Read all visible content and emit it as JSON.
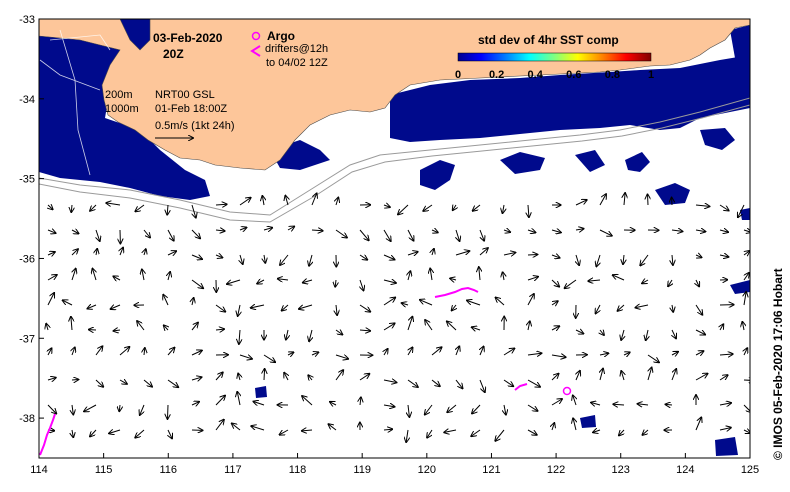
{
  "map": {
    "date": "03-Feb-2020",
    "time": "20Z",
    "argo_label": "Argo",
    "drifters_label": "drifters@12h",
    "drifters_period": "to 04/02 12Z",
    "isobath_200": "200m",
    "isobath_1000": "1000m",
    "product": "NRT00 GSL",
    "product_time": "01-Feb 18:00Z",
    "scale_label": "0.5m/s (1kt 24h)",
    "credit": "© IMOS 05-Feb-2020 17:06 Hobart",
    "colorbar": {
      "title": "std dev of 4hr SST comp",
      "ticks": [
        "0",
        "0.2",
        "0.4",
        "0.6",
        "0.8",
        "1"
      ]
    },
    "x_ticks": [
      "114",
      "115",
      "116",
      "117",
      "118",
      "119",
      "120",
      "121",
      "122",
      "123",
      "124",
      "125"
    ],
    "y_ticks": [
      "-33",
      "-34",
      "-35",
      "-36",
      "-37",
      "-38"
    ],
    "lon_range": [
      114,
      125
    ],
    "lat_range": [
      -38.5,
      -33
    ],
    "colors": {
      "land": "#fdc69a",
      "cloud_mask": "#000a8c",
      "argo": "#ff00ff",
      "drifter": "#ff00ff",
      "isobath": "#9a9a9a"
    }
  }
}
